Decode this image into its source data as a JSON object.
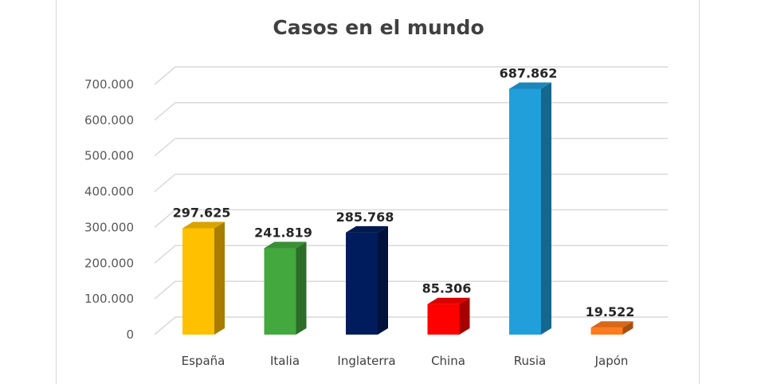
{
  "chart_data": {
    "type": "bar",
    "title": "Casos en el mundo",
    "categories": [
      "España",
      "Italia",
      "Inglaterra",
      "China",
      "Rusia",
      "Japón"
    ],
    "values": [
      297625,
      241819,
      285768,
      85306,
      687862,
      19522
    ],
    "value_labels": [
      "297.625",
      "241.819",
      "285.768",
      "85.306",
      "687.862",
      "19.522"
    ],
    "colors": [
      "#FFC000",
      "#43A83E",
      "#001C5C",
      "#FF0000",
      "#219FDB",
      "#FF7A1C"
    ],
    "y_ticks": [
      "0",
      "100.000",
      "200.000",
      "300.000",
      "400.000",
      "500.000",
      "600.000",
      "700.000"
    ],
    "ylim": [
      0,
      700000
    ],
    "grid": true,
    "legend": "none",
    "style": "3d-column"
  }
}
